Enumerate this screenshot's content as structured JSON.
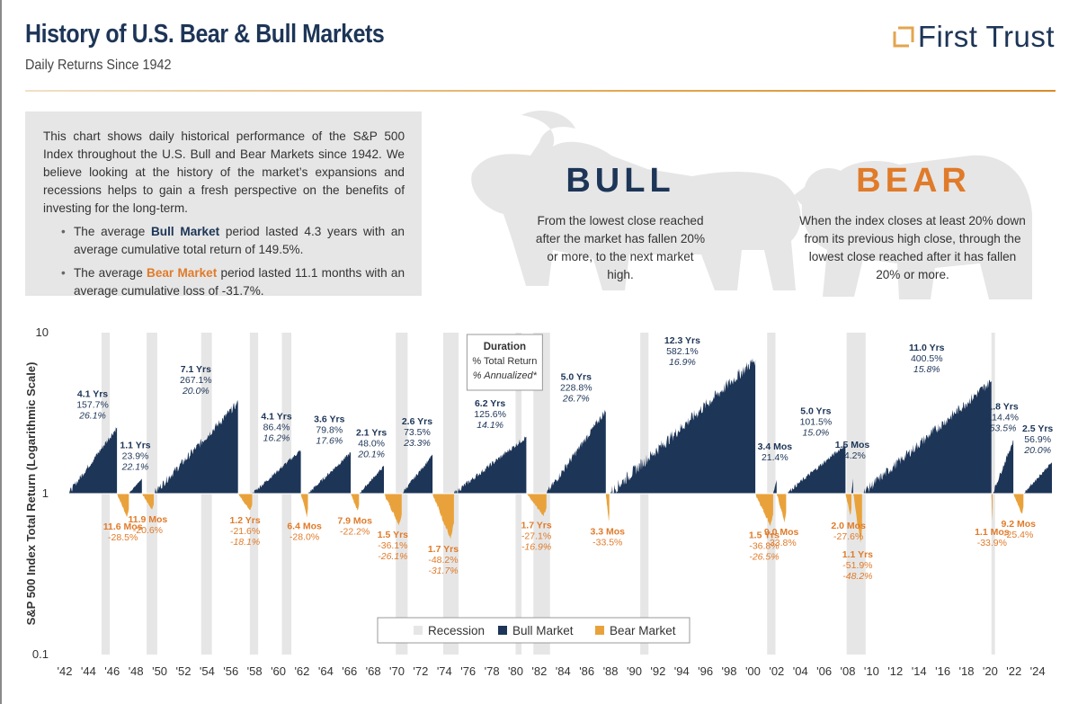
{
  "header": {
    "title": "History of U.S. Bear & Bull Markets",
    "subtitle": "Daily Returns Since 1942",
    "brand": "First Trust"
  },
  "info": {
    "paragraph": "This chart shows daily historical performance of the S&P 500 Index throughout the U.S. Bull and Bear Markets since 1942. We believe looking at the history of the market’s expansions and recessions helps to gain a fresh perspective on the benefits of investing for the long-term.",
    "bullet1_prefix": "The average ",
    "bullet1_key": "Bull Market",
    "bullet1_suffix": " period lasted 4.3 years with an average cumulative total return of 149.5%.",
    "bullet2_prefix": "The average ",
    "bullet2_key": "Bear Market",
    "bullet2_suffix": " period lasted 11.1 months with an average cumulative loss of -31.7%."
  },
  "hero": {
    "bull_title": "BULL",
    "bull_desc": "From the lowest close reached after the market has fallen 20% or more, to the next market high.",
    "bear_title": "BEAR",
    "bear_desc": "When the index closes at least 20% down from its previous high close, through the lowest close reached after it has fallen 20% or more."
  },
  "colors": {
    "bull": "#1d3557",
    "bear": "#e9a23b",
    "bear_text": "#e07b2a",
    "recession": "#e6e6e6"
  },
  "chart_data": {
    "type": "area",
    "ylabel": "S&P 500 Index Total Return (Logarithmic Scale)",
    "yscale": "log",
    "ylim": [
      0.1,
      10
    ],
    "yticks": [
      "10",
      "1",
      "0.1"
    ],
    "xlim": [
      1942,
      2025.2
    ],
    "xticks": [
      "'42",
      "'44",
      "'46",
      "'48",
      "'50",
      "'52",
      "'54",
      "'56",
      "'58",
      "'60",
      "'62",
      "'64",
      "'66",
      "'68",
      "'70",
      "'72",
      "'74",
      "'76",
      "'78",
      "'80",
      "'82",
      "'84",
      "'86",
      "'88",
      "'90",
      "'92",
      "'94",
      "'96",
      "'98",
      "'00",
      "'02",
      "'04",
      "'06",
      "'08",
      "'10",
      "'12",
      "'14",
      "'16",
      "'18",
      "'20",
      "'22",
      "'24"
    ],
    "legend": {
      "position": "bottom-center",
      "entries": [
        "Recession",
        "Bull Market",
        "Bear Market"
      ]
    },
    "key_box": {
      "title": "Duration",
      "line2": "% Total Return",
      "line3": "% Annualized*"
    },
    "recessions": [
      [
        1945.1,
        1945.8
      ],
      [
        1948.9,
        1949.8
      ],
      [
        1953.5,
        1954.4
      ],
      [
        1957.6,
        1958.3
      ],
      [
        1960.3,
        1961.1
      ],
      [
        1969.9,
        1970.9
      ],
      [
        1973.9,
        1975.2
      ],
      [
        1980.0,
        1980.5
      ],
      [
        1981.5,
        1982.9
      ],
      [
        1990.5,
        1991.2
      ],
      [
        2001.2,
        2001.9
      ],
      [
        2007.9,
        2009.5
      ],
      [
        2020.1,
        2020.4
      ]
    ],
    "bull_markets": [
      {
        "start": 1942.3,
        "end": 1946.4,
        "peak": 2.577,
        "duration": "4.1 Yrs",
        "total": "157.7%",
        "annualized": "26.1%"
      },
      {
        "start": 1947.4,
        "end": 1948.5,
        "peak": 1.239,
        "duration": "1.1 Yrs",
        "total": "23.9%",
        "annualized": "22.1%"
      },
      {
        "start": 1949.5,
        "end": 1956.6,
        "peak": 3.671,
        "duration": "7.1 Yrs",
        "total": "267.1%",
        "annualized": "20.0%"
      },
      {
        "start": 1957.8,
        "end": 1961.9,
        "peak": 1.864,
        "duration": "4.1 Yrs",
        "total": "86.4%",
        "annualized": "16.2%"
      },
      {
        "start": 1962.5,
        "end": 1966.1,
        "peak": 1.798,
        "duration": "3.6 Yrs",
        "total": "79.8%",
        "annualized": "17.6%"
      },
      {
        "start": 1966.8,
        "end": 1968.9,
        "peak": 1.48,
        "duration": "2.1 Yrs",
        "total": "48.0%",
        "annualized": "20.1%"
      },
      {
        "start": 1970.4,
        "end": 1973.0,
        "peak": 1.735,
        "duration": "2.6 Yrs",
        "total": "73.5%",
        "annualized": "23.3%"
      },
      {
        "start": 1974.8,
        "end": 1980.9,
        "peak": 2.256,
        "duration": "6.2 Yrs",
        "total": "125.6%",
        "annualized": "14.1%"
      },
      {
        "start": 1982.6,
        "end": 1987.6,
        "peak": 3.288,
        "duration": "5.0 Yrs",
        "total": "228.8%",
        "annualized": "26.7%"
      },
      {
        "start": 1987.9,
        "end": 2000.2,
        "peak": 6.821,
        "duration": "12.3 Yrs",
        "total": "582.1%",
        "annualized": "16.9%"
      },
      {
        "start": 2001.7,
        "end": 2002.0,
        "peak": 1.214,
        "duration": "3.4 Mos",
        "total": "21.4%",
        "annualized": ""
      },
      {
        "start": 2002.8,
        "end": 2007.8,
        "peak": 2.015,
        "duration": "5.0 Yrs",
        "total": "101.5%",
        "annualized": "15.0%"
      },
      {
        "start": 2008.3,
        "end": 2008.45,
        "peak": 1.242,
        "duration": "1.5 Mos",
        "total": "24.2%",
        "annualized": ""
      },
      {
        "start": 2009.2,
        "end": 2020.1,
        "peak": 5.005,
        "duration": "11.0 Yrs",
        "total": "400.5%",
        "annualized": "15.8%"
      },
      {
        "start": 2020.2,
        "end": 2021.95,
        "peak": 2.144,
        "duration": "1.8 Yrs",
        "total": "114.4%",
        "annualized": "53.5%"
      },
      {
        "start": 2022.8,
        "end": 2025.2,
        "peak": 1.569,
        "duration": "2.5 Yrs",
        "total": "56.9%",
        "annualized": "20.0%"
      }
    ],
    "bear_markets": [
      {
        "start": 1946.4,
        "end": 1947.4,
        "trough": 0.715,
        "duration": "11.6 Mos",
        "total": "-28.5%",
        "annualized": ""
      },
      {
        "start": 1948.5,
        "end": 1949.5,
        "trough": 0.794,
        "duration": "11.9 Mos",
        "total": "-20.6%",
        "annualized": ""
      },
      {
        "start": 1956.6,
        "end": 1957.8,
        "trough": 0.784,
        "duration": "1.2 Yrs",
        "total": "-21.6%",
        "annualized": "-18.1%"
      },
      {
        "start": 1961.9,
        "end": 1962.5,
        "trough": 0.72,
        "duration": "6.4 Mos",
        "total": "-28.0%",
        "annualized": ""
      },
      {
        "start": 1966.1,
        "end": 1966.8,
        "trough": 0.778,
        "duration": "7.9 Mos",
        "total": "-22.2%",
        "annualized": ""
      },
      {
        "start": 1968.9,
        "end": 1970.4,
        "trough": 0.639,
        "duration": "1.5 Yrs",
        "total": "-36.1%",
        "annualized": "-26.1%"
      },
      {
        "start": 1973.0,
        "end": 1974.8,
        "trough": 0.518,
        "duration": "1.7 Yrs",
        "total": "-48.2%",
        "annualized": "-31.7%"
      },
      {
        "start": 1980.9,
        "end": 1982.6,
        "trough": 0.729,
        "duration": "1.7 Yrs",
        "total": "-27.1%",
        "annualized": "-16.9%"
      },
      {
        "start": 1987.6,
        "end": 1987.9,
        "trough": 0.665,
        "duration": "3.3 Mos",
        "total": "-33.5%",
        "annualized": ""
      },
      {
        "start": 2000.2,
        "end": 2001.7,
        "trough": 0.632,
        "duration": "1.5 Yrs",
        "total": "-36.8%",
        "annualized": "-26.5%"
      },
      {
        "start": 2002.0,
        "end": 2002.8,
        "trough": 0.662,
        "duration": "9.0 Mos",
        "total": "-33.8%",
        "annualized": ""
      },
      {
        "start": 2007.8,
        "end": 2008.3,
        "trough": 0.724,
        "duration": "2.0 Mos",
        "total": "-27.6%",
        "annualized": ""
      },
      {
        "start": 2008.45,
        "end": 2009.2,
        "trough": 0.481,
        "duration": "1.1 Yrs",
        "total": "-51.9%",
        "annualized": "-48.2%"
      },
      {
        "start": 2020.1,
        "end": 2020.2,
        "trough": 0.661,
        "duration": "1.1 Mos",
        "total": "-33.9%",
        "annualized": ""
      },
      {
        "start": 2021.95,
        "end": 2022.8,
        "trough": 0.746,
        "duration": "9.2 Mos",
        "total": "-25.4%",
        "annualized": ""
      }
    ]
  }
}
